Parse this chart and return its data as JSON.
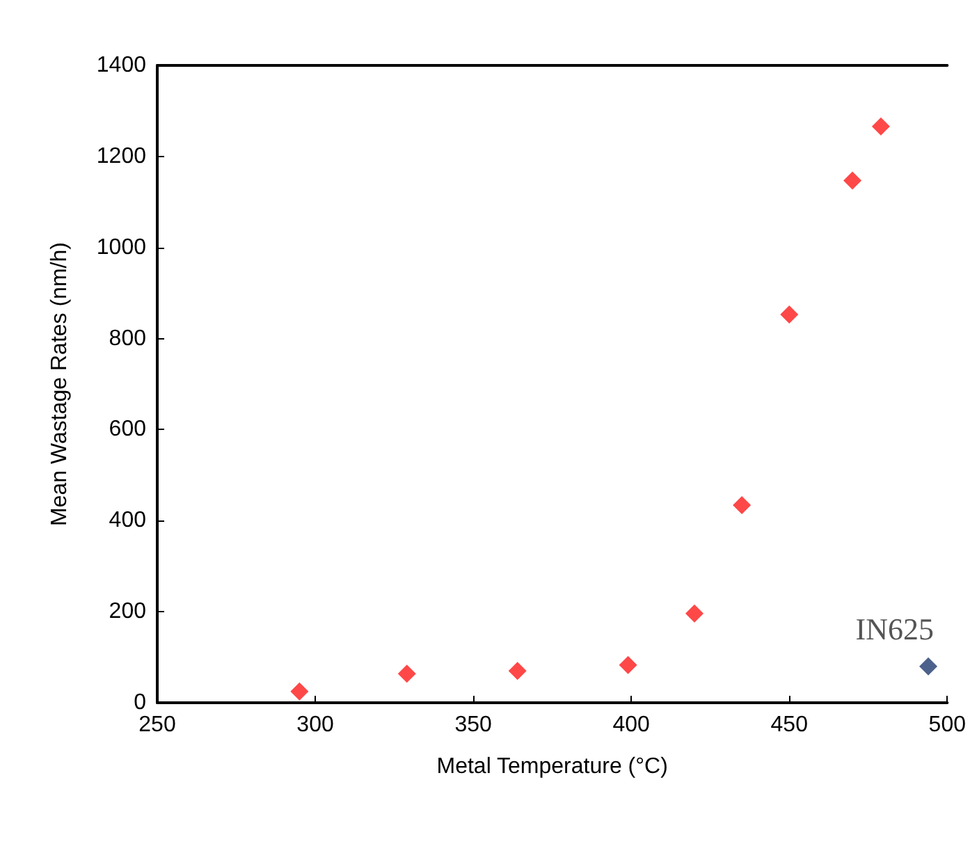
{
  "chart_data": {
    "type": "scatter",
    "xlabel": "Metal Temperature (°C)",
    "ylabel": "Mean Wastage Rates (nm/h)",
    "series": [
      {
        "color": "#ff1a1a",
        "x": [
          295,
          329,
          364,
          399,
          420,
          435,
          450,
          470,
          479
        ],
        "values": [
          25,
          64,
          70,
          83,
          196,
          434,
          853,
          1147,
          1266
        ]
      },
      {
        "color": "#1f3a6e",
        "x": [
          494
        ],
        "values": [
          80
        ]
      }
    ],
    "xlim": [
      250,
      500
    ],
    "xticks": [
      250,
      300,
      350,
      400,
      450,
      500
    ],
    "ylim": [
      0,
      1400
    ],
    "yticks": [
      0,
      200,
      400,
      600,
      800,
      1000,
      1200,
      1400
    ],
    "annotations": [
      {
        "text": "IN625",
        "x": 494,
        "y": 80
      }
    ],
    "marker": "diamond",
    "grid": false
  }
}
